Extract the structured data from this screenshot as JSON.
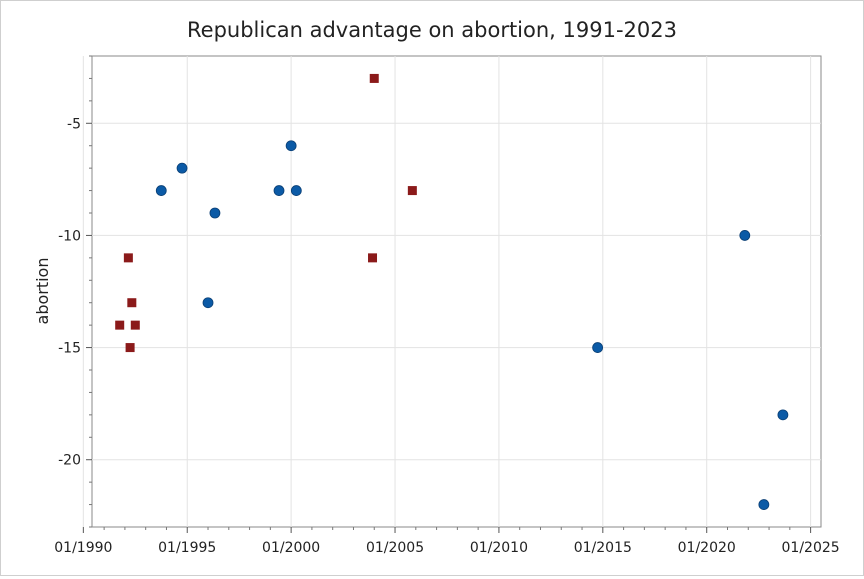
{
  "chart_data": {
    "type": "scatter",
    "title": "Republican advantage on abortion, 1991-2023",
    "xlabel": "",
    "ylabel": "abortion",
    "xlim": [
      "1990-06-01",
      "2025-07-01"
    ],
    "ylim": [
      -23,
      -2
    ],
    "x_tick_labels": [
      "01/1990",
      "01/1995",
      "01/2000",
      "01/2005",
      "01/2010",
      "01/2015",
      "01/2020",
      "01/2025"
    ],
    "y_ticks": [
      -5,
      -10,
      -15,
      -20
    ],
    "grid": true,
    "legend": "none",
    "series": [
      {
        "marker": "square",
        "color": "#8b1a1a",
        "points": [
          {
            "x": "1991-10-01",
            "y": -14
          },
          {
            "x": "1992-03-01",
            "y": -11
          },
          {
            "x": "1992-04-01",
            "y": -15
          },
          {
            "x": "1992-05-01",
            "y": -13
          },
          {
            "x": "1992-07-01",
            "y": -14
          },
          {
            "x": "2003-12-01",
            "y": -11
          },
          {
            "x": "2004-01-01",
            "y": -3
          },
          {
            "x": "2005-11-01",
            "y": -8
          }
        ]
      },
      {
        "marker": "circle",
        "color": "#0b5aa6",
        "points": [
          {
            "x": "1993-10-01",
            "y": -8
          },
          {
            "x": "1994-10-01",
            "y": -7
          },
          {
            "x": "1996-01-01",
            "y": -13
          },
          {
            "x": "1996-05-01",
            "y": -9
          },
          {
            "x": "1999-06-01",
            "y": -8
          },
          {
            "x": "2000-01-01",
            "y": -6
          },
          {
            "x": "2000-04-01",
            "y": -8
          },
          {
            "x": "2014-10-01",
            "y": -15
          },
          {
            "x": "2021-11-01",
            "y": -10
          },
          {
            "x": "2022-10-01",
            "y": -22
          },
          {
            "x": "2023-09-01",
            "y": -18
          }
        ]
      }
    ]
  }
}
